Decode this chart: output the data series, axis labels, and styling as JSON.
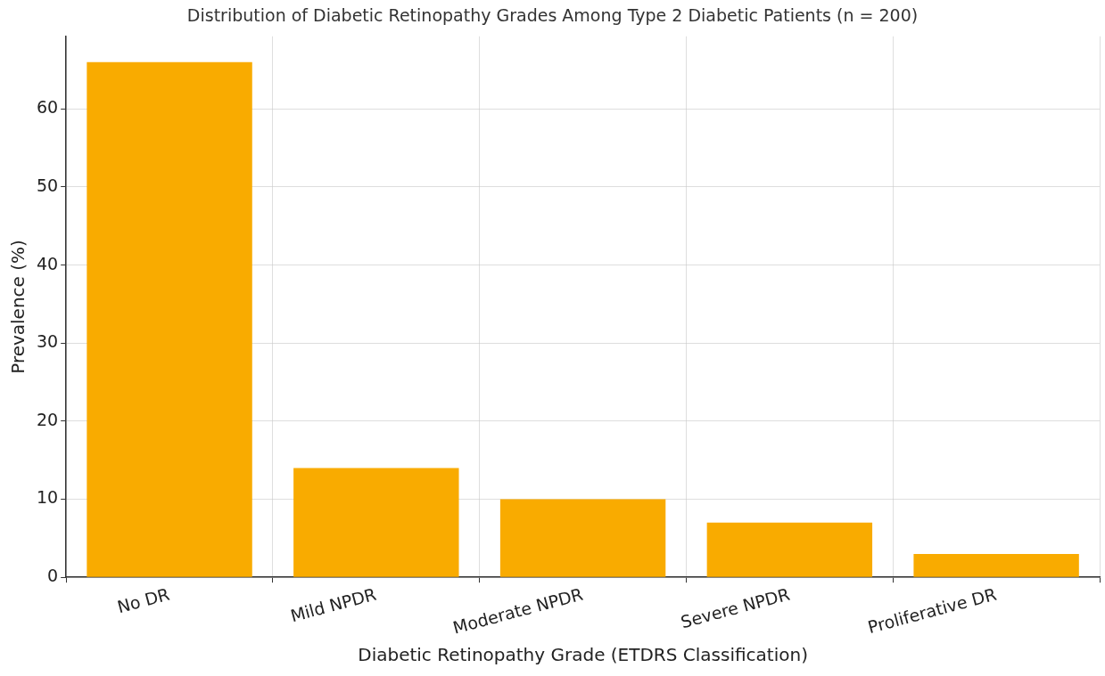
{
  "chart_data": {
    "type": "bar",
    "title": "Distribution of Diabetic Retinopathy Grades Among Type 2 Diabetic Patients (n = 200)",
    "xlabel": "Diabetic Retinopathy Grade (ETDRS Classification)",
    "ylabel": "Prevalence (%)",
    "categories": [
      "No DR",
      "Mild NPDR",
      "Moderate NPDR",
      "Severe NPDR",
      "Proliferative DR"
    ],
    "values": [
      66,
      14,
      10,
      7,
      3
    ],
    "color": "#f9ab00",
    "ylim": [
      0,
      69.3
    ],
    "yticks": [
      0,
      10,
      20,
      30,
      40,
      50,
      60
    ],
    "grid": true,
    "legend": false
  }
}
